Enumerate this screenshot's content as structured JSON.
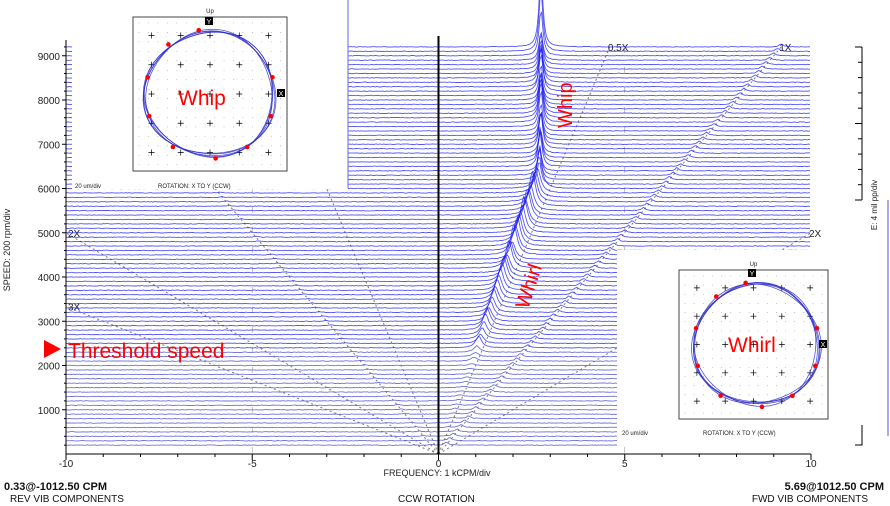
{
  "chart_data": {
    "type": "line",
    "subtype": "full-spectrum cascade",
    "xlabel": "FREQUENCY: 1 kCPM/div",
    "ylabel": "SPEED: 200 rpm/div",
    "amplitude_scale_label": "E: 4 mil pp/div",
    "xlim": [
      -10,
      10
    ],
    "ylim": [
      0,
      9400
    ],
    "x_ticks": [
      "-10",
      "-5",
      "0",
      "5",
      "10"
    ],
    "y_ticks": [
      "1000",
      "2000",
      "3000",
      "4000",
      "5000",
      "6000",
      "7000",
      "8000",
      "9000"
    ],
    "order_lines": [
      {
        "label": "0.5X",
        "order": 0.5
      },
      {
        "label": "1X",
        "order": 1
      },
      {
        "label": "2X",
        "order": 2
      },
      {
        "label": "2X",
        "order": -2
      },
      {
        "label": "3X",
        "order": -3
      }
    ],
    "subsynchronous_peak": [
      {
        "speed": 1000,
        "freq": 0.45,
        "amp": 0.3
      },
      {
        "speed": 2000,
        "freq": 0.9,
        "amp": 0.5
      },
      {
        "speed": 2400,
        "freq": 1.08,
        "amp": 2.5
      },
      {
        "speed": 3000,
        "freq": 1.35,
        "amp": 4
      },
      {
        "speed": 4000,
        "freq": 1.8,
        "amp": 6
      },
      {
        "speed": 5000,
        "freq": 2.25,
        "amp": 7
      },
      {
        "speed": 6000,
        "freq": 2.7,
        "amp": 8
      },
      {
        "speed": 7000,
        "freq": 2.75,
        "amp": 8
      },
      {
        "speed": 8000,
        "freq": 2.75,
        "amp": 9
      },
      {
        "speed": 9000,
        "freq": 2.75,
        "amp": 10
      },
      {
        "speed": 9200,
        "freq": 2.75,
        "amp": 20
      }
    ],
    "annotations": {
      "whip": "Whip",
      "whirl": "Whirl",
      "threshold": "Threshold speed"
    },
    "colors": {
      "trace": "#5a5ad6",
      "peak": "#1e1ef0",
      "annotation": "#ff0000",
      "order_line": "#777777"
    }
  },
  "orbits": [
    {
      "name": "Whip",
      "up_label": "Up",
      "y_marker": "Y",
      "x_marker": "X",
      "scale": "20 um/div",
      "rotation": "ROTATION: X TO Y (CCW)"
    },
    {
      "name": "Whirl",
      "up_label": "Up",
      "y_marker": "Y",
      "x_marker": "X",
      "scale": "20 um/div",
      "rotation": "ROTATION: X TO Y (CCW)"
    }
  ],
  "footer": {
    "rev_value": "0.33@-1012.50 CPM",
    "rev_label": "REV VIB COMPONENTS",
    "rotation": "CCW ROTATION",
    "fwd_value": "5.69@1012.50 CPM",
    "fwd_label": "FWD VIB COMPONENTS"
  }
}
